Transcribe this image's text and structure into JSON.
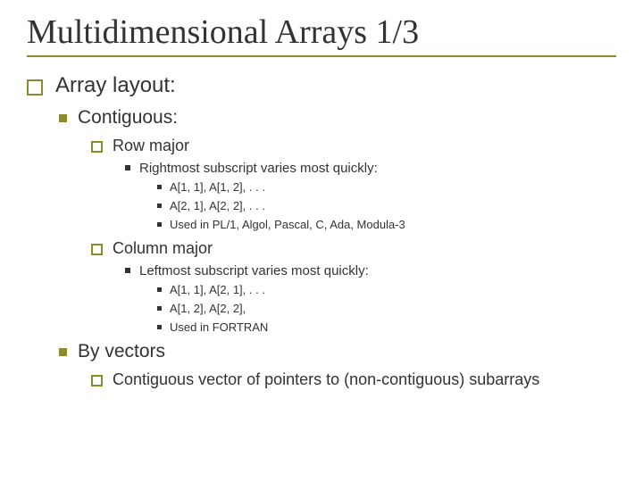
{
  "colors": {
    "accent": "#8a8a2f",
    "text": "#333333",
    "background": "#ffffff"
  },
  "title": "Multidimensional Arrays 1/3",
  "lvl1_1": "Array layout:",
  "lvl2_1": "Contiguous:",
  "lvl3_1": "Row major",
  "lvl4_1": "Rightmost subscript varies most quickly:",
  "lvl5_1": "A[1, 1], A[1, 2], . . .",
  "lvl5_2": "A[2, 1], A[2, 2], . . .",
  "lvl5_3": "Used in PL/1, Algol, Pascal, C, Ada, Modula-3",
  "lvl3_2": "Column major",
  "lvl4_2": "Leftmost subscript varies most quickly:",
  "lvl5_4": "A[1, 1], A[2, 1], . . .",
  "lvl5_5": "A[1, 2], A[2, 2],",
  "lvl5_6": " Used in FORTRAN",
  "lvl2_2": "By vectors",
  "lvl3_3": "Contiguous vector of pointers to (non-contiguous) subarrays"
}
